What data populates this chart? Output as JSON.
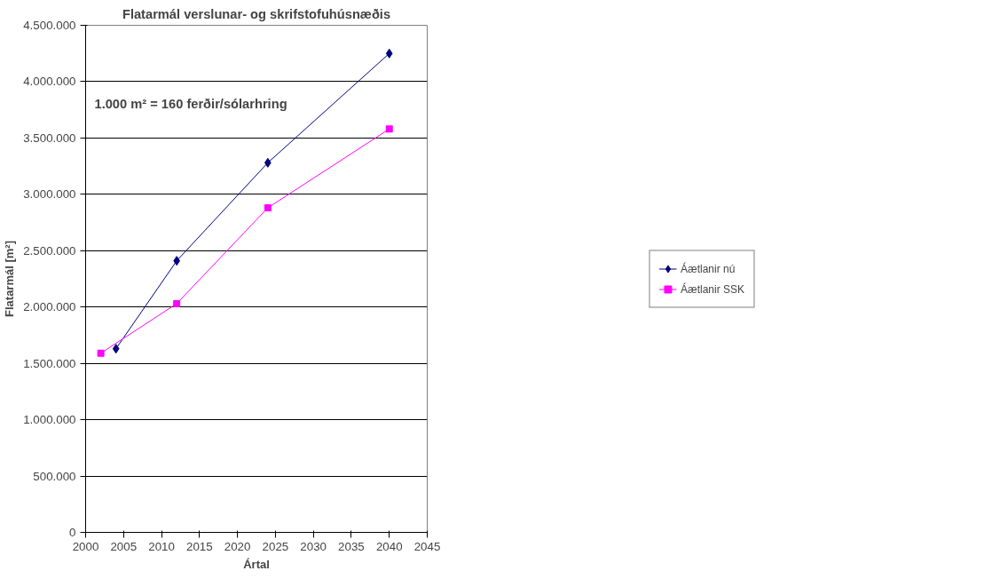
{
  "chart_data": {
    "type": "line",
    "title": "Flatarmál verslunar- og skrifstofuhúsnæðis",
    "xlabel": "Ártal",
    "ylabel": "Flatarmál [m²]",
    "annotations": [
      "1.000 m² = 160 ferðir/sólarhring"
    ],
    "series": [
      {
        "name": "Áætlanir nú",
        "color": "#000080",
        "marker": "diamond",
        "x": [
          2004,
          2012,
          2024,
          2040
        ],
        "values": [
          1630000,
          2410000,
          3280000,
          4250000
        ]
      },
      {
        "name": "Áætlanir SSK",
        "color": "#ff00ff",
        "marker": "square",
        "x": [
          2002,
          2012,
          2024,
          2040
        ],
        "values": [
          1590000,
          2030000,
          2880000,
          3580000
        ]
      }
    ],
    "xlim": [
      2000,
      2045
    ],
    "xticks": [
      2000,
      2005,
      2010,
      2015,
      2020,
      2025,
      2030,
      2035,
      2040,
      2045
    ],
    "ylim": [
      0,
      4500000
    ],
    "yticks": [
      0,
      {
        "value": 500000,
        "label": "500.000"
      },
      {
        "value": 1000000,
        "label": "1.000.000"
      },
      {
        "value": 1500000,
        "label": "1.500.000"
      },
      {
        "value": 2000000,
        "label": "2.000.000"
      },
      {
        "value": 2500000,
        "label": "2.500.000"
      },
      {
        "value": 3000000,
        "label": "3.000.000"
      },
      {
        "value": 3500000,
        "label": "3.500.000"
      },
      {
        "value": 4000000,
        "label": "4.000.000"
      },
      {
        "value": 4500000,
        "label": "4.500.000"
      }
    ],
    "grid": "y",
    "legend": "right"
  }
}
